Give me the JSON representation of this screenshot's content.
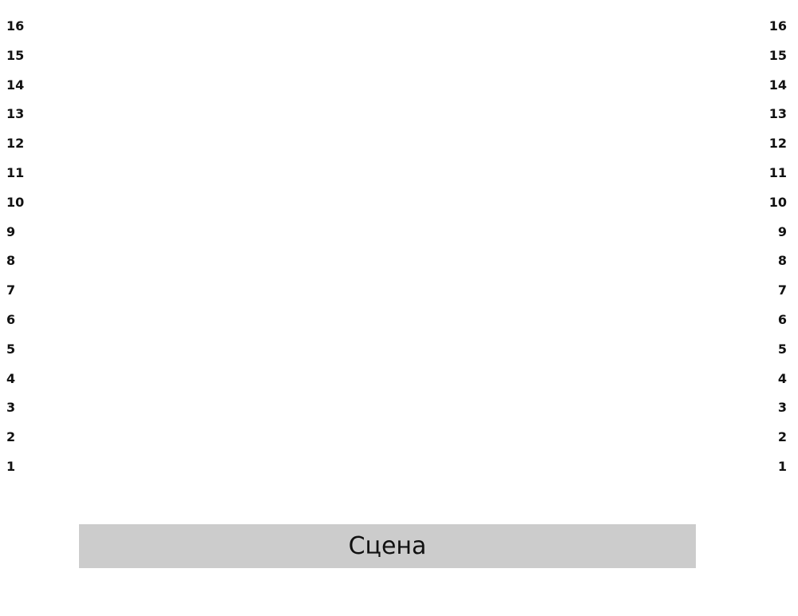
{
  "rows_left": [
    "16",
    "15",
    "14",
    "13",
    "12",
    "11",
    "10",
    "9",
    "8",
    "7",
    "6",
    "5",
    "4",
    "3",
    "2",
    "1"
  ],
  "rows_right": [
    "16",
    "15",
    "14",
    "13",
    "12",
    "11",
    "10",
    "9",
    "8",
    "7",
    "6",
    "5",
    "4",
    "3",
    "2",
    "1"
  ],
  "stage": {
    "label": "Сцена",
    "color": "#cccccc"
  }
}
